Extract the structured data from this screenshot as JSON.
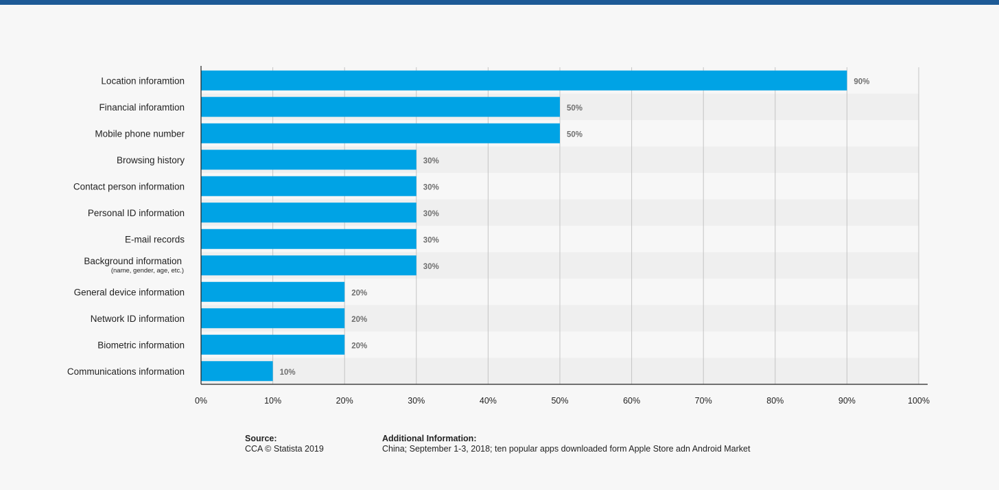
{
  "chart_data": {
    "type": "bar",
    "orientation": "horizontal",
    "categories": [
      {
        "label": "Location inforamtion"
      },
      {
        "label": "Financial inforamtion"
      },
      {
        "label": "Mobile phone number"
      },
      {
        "label": "Browsing history"
      },
      {
        "label": "Contact person information"
      },
      {
        "label": "Personal ID information"
      },
      {
        "label": "E-mail records"
      },
      {
        "label": "Background information",
        "sublabel": "(name, gender, age, etc.)"
      },
      {
        "label": "General device information"
      },
      {
        "label": "Network ID information"
      },
      {
        "label": "Biometric information"
      },
      {
        "label": "Communications information"
      }
    ],
    "values": [
      90,
      50,
      50,
      30,
      30,
      30,
      30,
      30,
      20,
      20,
      20,
      10
    ],
    "value_labels": [
      "90%",
      "50%",
      "50%",
      "30%",
      "30%",
      "30%",
      "30%",
      "30%",
      "20%",
      "20%",
      "20%",
      "10%"
    ],
    "xlim": [
      0,
      100
    ],
    "xticks": [
      "0%",
      "10%",
      "20%",
      "30%",
      "40%",
      "50%",
      "60%",
      "70%",
      "80%",
      "90%",
      "100%"
    ],
    "grid": true,
    "colors": {
      "bar": "#00a3e5",
      "accent": "#1d5a96"
    }
  },
  "source": {
    "title": "Source:",
    "text": "CCA © Statista 2019"
  },
  "additional_info": {
    "title": "Additional Information:",
    "text": "China; September 1-3, 2018; ten popular apps downloaded form Apple Store adn Android Market"
  }
}
